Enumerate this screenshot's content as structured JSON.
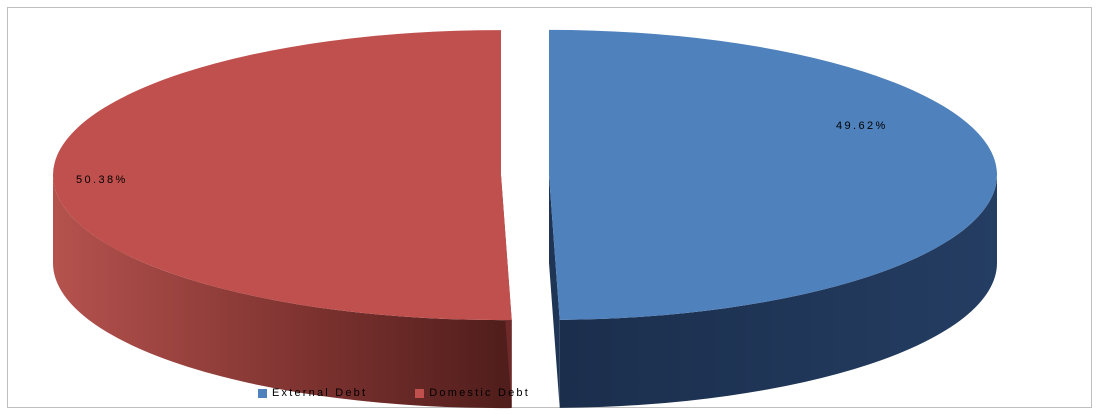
{
  "chart_data": {
    "type": "pie",
    "style": "3d-exploded",
    "title": "",
    "legend_position": "bottom",
    "slices": [
      {
        "name": "External Debt",
        "value": 49.62,
        "label": "49.62%",
        "color": "#4F81BD",
        "side_color": "#1F3556"
      },
      {
        "name": "Domestic Debt",
        "value": 50.38,
        "label": "50.38%",
        "color": "#C0504D",
        "side_color": "#6E2A28"
      }
    ]
  }
}
